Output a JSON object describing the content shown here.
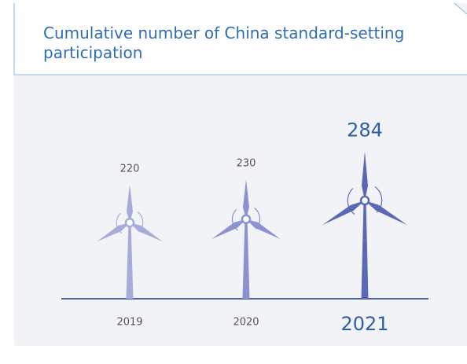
{
  "chart_data": {
    "type": "pictograph",
    "title": "Cumulative number of China standard-setting participation",
    "categories": [
      "2019",
      "2020",
      "2021"
    ],
    "values": [
      220,
      230,
      284
    ],
    "colors": [
      "#a6acd9",
      "#8a93cf",
      "#5a68b5"
    ]
  }
}
